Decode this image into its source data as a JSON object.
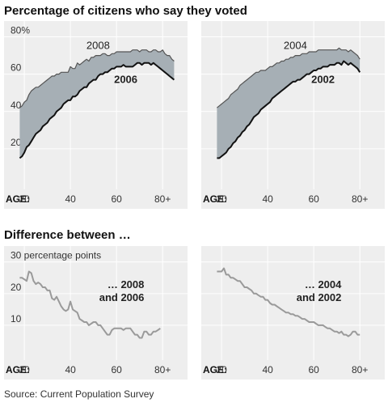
{
  "titles": {
    "top": "Percentage of citizens who say they voted",
    "bottom": "Difference between …"
  },
  "source": "Source: Current Population Survey",
  "colors": {
    "panel_bg": "#eeeeee",
    "band_fill": "#a6afb5",
    "upper_line": "#555555",
    "lower_line": "#111111",
    "diff_line": "#9a9a9a",
    "gridline": "#ffffff"
  },
  "chart_data": [
    {
      "type": "area",
      "x_axis_label": "AGE:",
      "xlim": [
        14,
        88
      ],
      "ylim": [
        0,
        85
      ],
      "x_ticks": [
        "20",
        "40",
        "60",
        "80+"
      ],
      "x_tick_values": [
        20,
        40,
        60,
        80
      ],
      "y_ticks": [
        "80%",
        "60",
        "40",
        "20"
      ],
      "y_tick_values": [
        80,
        60,
        40,
        20
      ],
      "grid": true,
      "x": [
        18,
        19,
        20,
        21,
        22,
        23,
        24,
        25,
        26,
        27,
        28,
        29,
        30,
        31,
        32,
        33,
        34,
        35,
        36,
        37,
        38,
        39,
        40,
        41,
        42,
        43,
        44,
        45,
        46,
        47,
        48,
        49,
        50,
        51,
        52,
        53,
        54,
        55,
        56,
        57,
        58,
        59,
        60,
        61,
        62,
        63,
        64,
        65,
        66,
        67,
        68,
        69,
        70,
        71,
        72,
        73,
        74,
        75,
        76,
        77,
        78,
        79,
        80,
        81,
        82,
        83,
        84,
        85
      ],
      "series": [
        {
          "name": "2008",
          "role": "upper",
          "values": [
            42,
            43,
            45,
            46,
            49,
            51,
            52,
            53,
            53,
            54,
            55,
            56,
            57,
            58,
            59,
            59,
            60,
            60,
            61,
            61,
            61,
            61,
            64,
            63,
            63,
            66,
            65,
            66,
            67,
            68,
            67,
            69,
            69,
            70,
            70,
            70,
            71,
            71,
            70,
            70,
            71,
            71,
            72,
            72,
            72,
            72,
            72,
            72,
            72,
            73,
            73,
            73,
            72,
            73,
            73,
            73,
            72,
            72,
            73,
            73,
            72,
            72,
            73,
            71,
            70,
            70,
            68,
            67
          ]
        },
        {
          "name": "2006",
          "role": "lower",
          "values": [
            15,
            16,
            18,
            21,
            22,
            24,
            26,
            28,
            29,
            30,
            32,
            33,
            34,
            36,
            37,
            38,
            40,
            41,
            42,
            44,
            45,
            46,
            46,
            48,
            48,
            49,
            51,
            52,
            53,
            53,
            55,
            56,
            57,
            57,
            59,
            60,
            60,
            61,
            61,
            62,
            63,
            63,
            64,
            64,
            64,
            65,
            64,
            64,
            64,
            64,
            65,
            66,
            66,
            65,
            66,
            66,
            66,
            65,
            66,
            65,
            64,
            63,
            62,
            61,
            60,
            59,
            58,
            57
          ]
        }
      ]
    },
    {
      "type": "area",
      "x_axis_label": "AGE:",
      "xlim": [
        14,
        88
      ],
      "ylim": [
        0,
        85
      ],
      "x_ticks": [
        "20",
        "40",
        "60",
        "80+"
      ],
      "x_tick_values": [
        20,
        40,
        60,
        80
      ],
      "y_ticks": [],
      "y_tick_values": [
        80,
        60,
        40,
        20
      ],
      "grid": true,
      "x": [
        18,
        19,
        20,
        21,
        22,
        23,
        24,
        25,
        26,
        27,
        28,
        29,
        30,
        31,
        32,
        33,
        34,
        35,
        36,
        37,
        38,
        39,
        40,
        41,
        42,
        43,
        44,
        45,
        46,
        47,
        48,
        49,
        50,
        51,
        52,
        53,
        54,
        55,
        56,
        57,
        58,
        59,
        60,
        61,
        62,
        63,
        64,
        65,
        66,
        67,
        68,
        69,
        70,
        71,
        72,
        73,
        74,
        75,
        76,
        77,
        78,
        79,
        80
      ],
      "series": [
        {
          "name": "2004",
          "role": "upper",
          "values": [
            42,
            43,
            44,
            45,
            46,
            47,
            49,
            50,
            51,
            52,
            54,
            55,
            56,
            57,
            58,
            59,
            60,
            61,
            61,
            62,
            62,
            62,
            63,
            64,
            64,
            65,
            66,
            66,
            67,
            67,
            68,
            68,
            69,
            69,
            70,
            70,
            70,
            71,
            71,
            71,
            72,
            72,
            72,
            72,
            73,
            73,
            73,
            73,
            73,
            73,
            73,
            73,
            73,
            74,
            73,
            73,
            73,
            72,
            73,
            72,
            71,
            70,
            68
          ]
        },
        {
          "name": "2002",
          "role": "lower",
          "values": [
            15,
            15,
            16,
            17,
            18,
            20,
            21,
            23,
            24,
            26,
            27,
            29,
            30,
            32,
            33,
            35,
            37,
            38,
            39,
            41,
            42,
            43,
            44,
            45,
            47,
            48,
            49,
            50,
            51,
            52,
            53,
            54,
            55,
            56,
            56,
            57,
            57,
            58,
            59,
            60,
            60,
            61,
            62,
            62,
            63,
            63,
            64,
            64,
            64,
            65,
            65,
            65,
            66,
            66,
            65,
            67,
            66,
            65,
            66,
            65,
            64,
            63,
            61
          ]
        }
      ]
    },
    {
      "type": "line",
      "x_axis_label": "AGE:",
      "xlim": [
        14,
        88
      ],
      "ylim": [
        0,
        33
      ],
      "x_ticks": [
        "20",
        "40",
        "60",
        "80+"
      ],
      "x_tick_values": [
        20,
        40,
        60,
        80
      ],
      "y_ticks": [
        "30 percentage points",
        "20",
        "10"
      ],
      "y_tick_values": [
        30,
        20,
        10
      ],
      "grid": true,
      "annotation": [
        "… 2008",
        "and 2006"
      ],
      "x": [
        18,
        19,
        20,
        21,
        22,
        23,
        24,
        25,
        26,
        27,
        28,
        29,
        30,
        31,
        32,
        33,
        34,
        35,
        36,
        37,
        38,
        39,
        40,
        41,
        42,
        43,
        44,
        45,
        46,
        47,
        48,
        49,
        50,
        51,
        52,
        53,
        54,
        55,
        56,
        57,
        58,
        59,
        60,
        61,
        62,
        63,
        64,
        65,
        66,
        67,
        68,
        69,
        70,
        71,
        72,
        73,
        74,
        75,
        76,
        77,
        78,
        79
      ],
      "series": [
        {
          "name": "",
          "values": [
            25,
            25,
            24.5,
            24,
            27,
            26.5,
            24,
            23,
            23.5,
            23,
            22,
            22,
            21,
            21,
            18.5,
            18,
            19,
            17.5,
            16,
            15,
            14.5,
            15,
            17.5,
            15,
            14.5,
            14,
            12,
            11.5,
            11,
            11,
            10,
            10.5,
            11,
            11,
            10,
            10,
            9,
            8,
            7,
            7,
            8.5,
            9,
            9,
            9,
            9,
            8.5,
            9,
            9,
            9,
            8,
            7,
            7,
            6,
            6,
            8,
            8,
            7,
            7,
            8,
            8,
            8.5,
            9
          ]
        }
      ]
    },
    {
      "type": "line",
      "x_axis_label": "AGE:",
      "xlim": [
        14,
        88
      ],
      "ylim": [
        0,
        33
      ],
      "x_ticks": [
        "20",
        "40",
        "60",
        "80+"
      ],
      "x_tick_values": [
        20,
        40,
        60,
        80
      ],
      "y_ticks": [],
      "y_tick_values": [
        30,
        20,
        10
      ],
      "grid": true,
      "annotation": [
        "… 2004",
        "and 2002"
      ],
      "x": [
        18,
        19,
        20,
        21,
        22,
        23,
        24,
        25,
        26,
        27,
        28,
        29,
        30,
        31,
        32,
        33,
        34,
        35,
        36,
        37,
        38,
        39,
        40,
        41,
        42,
        43,
        44,
        45,
        46,
        47,
        48,
        49,
        50,
        51,
        52,
        53,
        54,
        55,
        56,
        57,
        58,
        59,
        60,
        61,
        62,
        63,
        64,
        65,
        66,
        67,
        68,
        69,
        70,
        71,
        72,
        73,
        74,
        75,
        76,
        77,
        78,
        79,
        80
      ],
      "series": [
        {
          "name": "",
          "values": [
            27,
            27,
            27,
            28,
            26,
            26,
            25,
            25,
            24.5,
            24,
            24,
            23,
            22,
            22,
            21.5,
            21,
            20,
            20,
            19.5,
            19,
            19,
            18,
            18,
            17,
            16.5,
            16.5,
            16,
            15.5,
            15,
            14.5,
            14,
            14,
            13.5,
            13.5,
            13,
            13,
            12.5,
            12,
            12,
            11.5,
            11,
            11,
            11,
            10.5,
            10,
            10,
            10,
            9.5,
            9,
            9,
            8.5,
            8,
            8,
            7.5,
            8,
            7,
            7,
            6.5,
            7,
            8,
            8,
            7,
            7
          ]
        }
      ]
    }
  ]
}
